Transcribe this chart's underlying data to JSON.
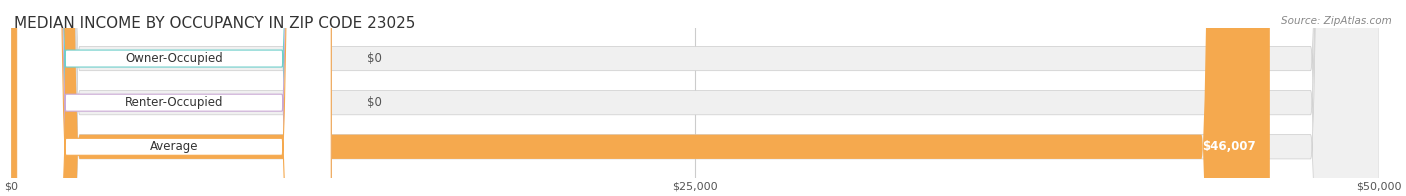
{
  "title": "MEDIAN INCOME BY OCCUPANCY IN ZIP CODE 23025",
  "source_text": "Source: ZipAtlas.com",
  "categories": [
    "Owner-Occupied",
    "Renter-Occupied",
    "Average"
  ],
  "values": [
    0,
    0,
    46007
  ],
  "bar_colors": [
    "#6ecfcb",
    "#c9a8d4",
    "#f5a94e"
  ],
  "label_colors": [
    "#6ecfcb",
    "#c9a8d4",
    "#f5a94e"
  ],
  "bar_bg_color": "#f0f0f0",
  "value_labels": [
    "$0",
    "$0",
    "$46,007"
  ],
  "xlim": [
    0,
    50000
  ],
  "xtick_values": [
    0,
    25000,
    50000
  ],
  "xtick_labels": [
    "$0",
    "$25,000",
    "$50,000"
  ],
  "bar_height": 0.55,
  "background_color": "#ffffff",
  "title_fontsize": 11,
  "bar_bg_alpha": 1.0
}
